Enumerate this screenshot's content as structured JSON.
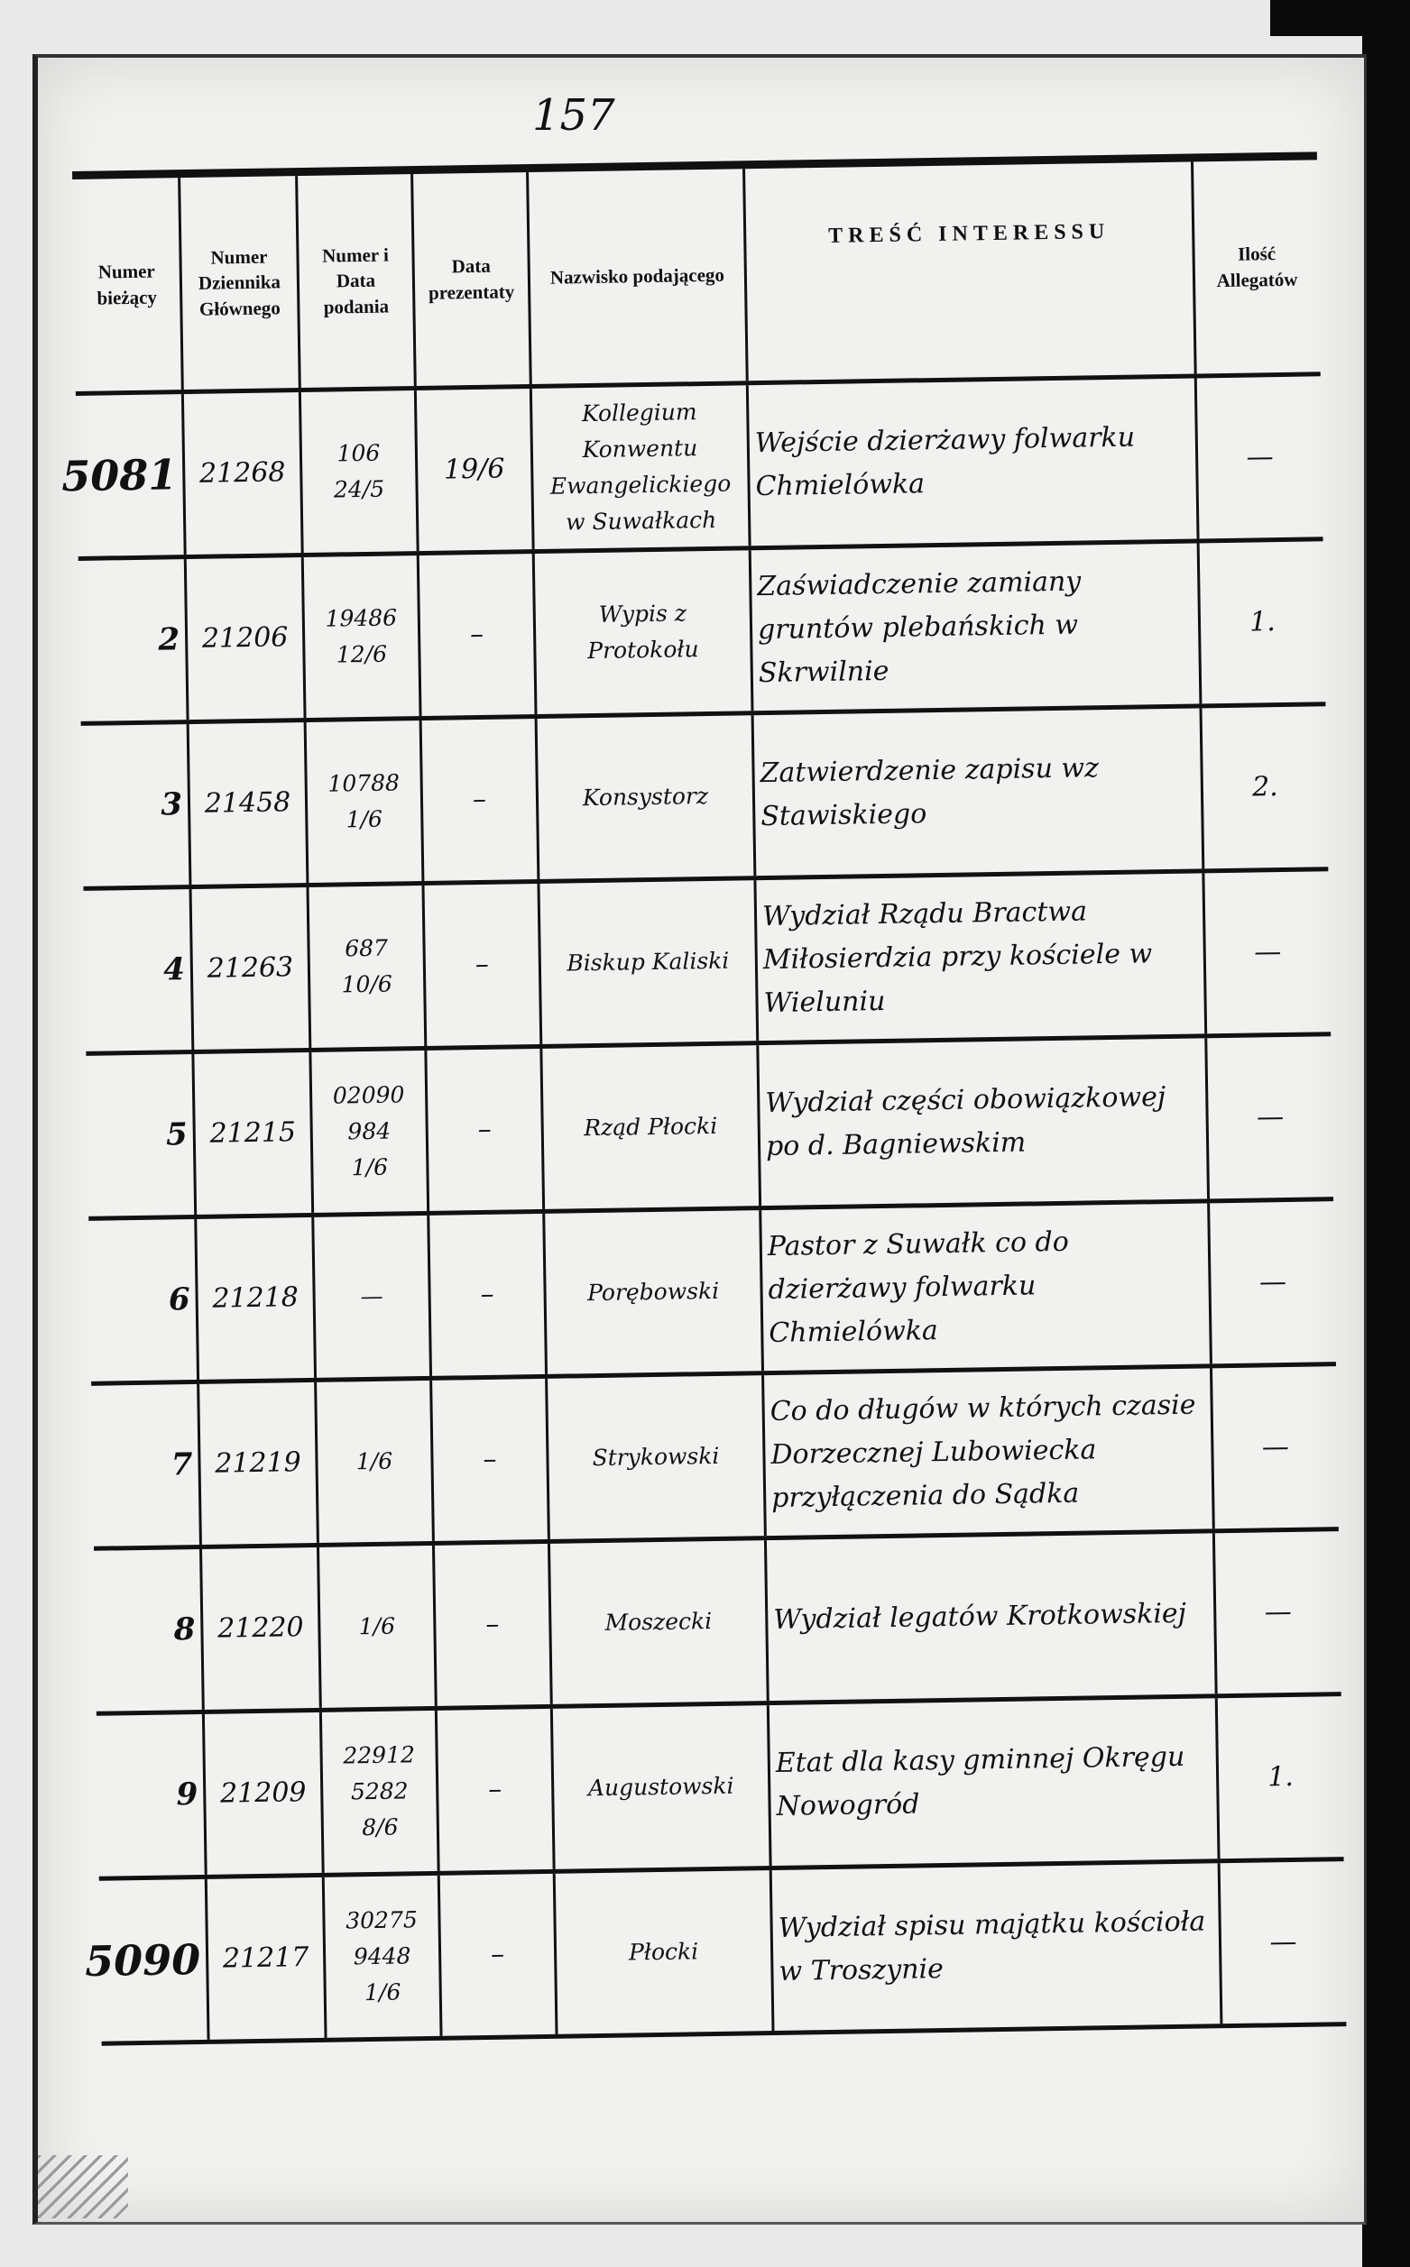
{
  "page_number": "157",
  "headers": {
    "col1": "Numer bieżący",
    "col2": "Numer Dziennika Głównego",
    "col3": "Numer i Data podania",
    "col4": "Data prezentaty",
    "col5": "Nazwisko podającego",
    "col6": "TREŚĆ INTERESSU",
    "col7": "Ilość Allegatów"
  },
  "rows": [
    {
      "nr": "5081",
      "dziennik": "21268",
      "podanie": [
        "106",
        "24/5"
      ],
      "prezentata": "19/6",
      "nazwisko": "Kollegium Konwentu Ewangelickiego w Suwałkach",
      "tresc": "Wejście dzierżawy folwarku Chmielówka",
      "allegaty": "—"
    },
    {
      "nr": "2",
      "dziennik": "21206",
      "podanie": [
        "19486",
        "12/6"
      ],
      "prezentata": "–",
      "nazwisko": "Wypis z Protokołu",
      "tresc": "Zaświadczenie zamiany gruntów plebańskich w Skrwilnie",
      "allegaty": "1."
    },
    {
      "nr": "3",
      "dziennik": "21458",
      "podanie": [
        "10788",
        "1/6"
      ],
      "prezentata": "–",
      "nazwisko": "Konsystorz",
      "tresc": "Zatwierdzenie zapisu wz Stawiskiego",
      "allegaty": "2."
    },
    {
      "nr": "4",
      "dziennik": "21263",
      "podanie": [
        "687",
        "10/6"
      ],
      "prezentata": "–",
      "nazwisko": "Biskup Kaliski",
      "tresc": "Wydział Rządu Bractwa Miłosierdzia przy kościele w Wieluniu",
      "allegaty": "—"
    },
    {
      "nr": "5",
      "dziennik": "21215",
      "podanie": [
        "02090",
        "984",
        "1/6"
      ],
      "prezentata": "–",
      "nazwisko": "Rząd Płocki",
      "tresc": "Wydział części obowiązkowej po d. Bagniewskim",
      "allegaty": "—"
    },
    {
      "nr": "6",
      "dziennik": "21218",
      "podanie": [
        "—"
      ],
      "prezentata": "–",
      "nazwisko": "Porębowski",
      "tresc": "Pastor z Suwałk co do dzierżawy folwarku Chmielówka",
      "allegaty": "—"
    },
    {
      "nr": "7",
      "dziennik": "21219",
      "podanie": [
        "1/6"
      ],
      "prezentata": "–",
      "nazwisko": "Strykowski",
      "tresc": "Co do długów w których czasie Dorzecznej Lubowiecka przyłączenia do Sądka",
      "allegaty": "—"
    },
    {
      "nr": "8",
      "dziennik": "21220",
      "podanie": [
        "1/6"
      ],
      "prezentata": "–",
      "nazwisko": "Moszecki",
      "tresc": "Wydział legatów Krotkowskiej",
      "allegaty": "—"
    },
    {
      "nr": "9",
      "dziennik": "21209",
      "podanie": [
        "22912",
        "5282",
        "8/6"
      ],
      "prezentata": "–",
      "nazwisko": "Augustowski",
      "tresc": "Etat dla kasy gminnej Okręgu Nowogród",
      "allegaty": "1."
    },
    {
      "nr": "5090",
      "dziennik": "21217",
      "podanie": [
        "30275",
        "9448",
        "1/6"
      ],
      "prezentata": "–",
      "nazwisko": "Płocki",
      "tresc": "Wydział spisu majątku kościoła w Troszynie",
      "allegaty": "—"
    }
  ]
}
